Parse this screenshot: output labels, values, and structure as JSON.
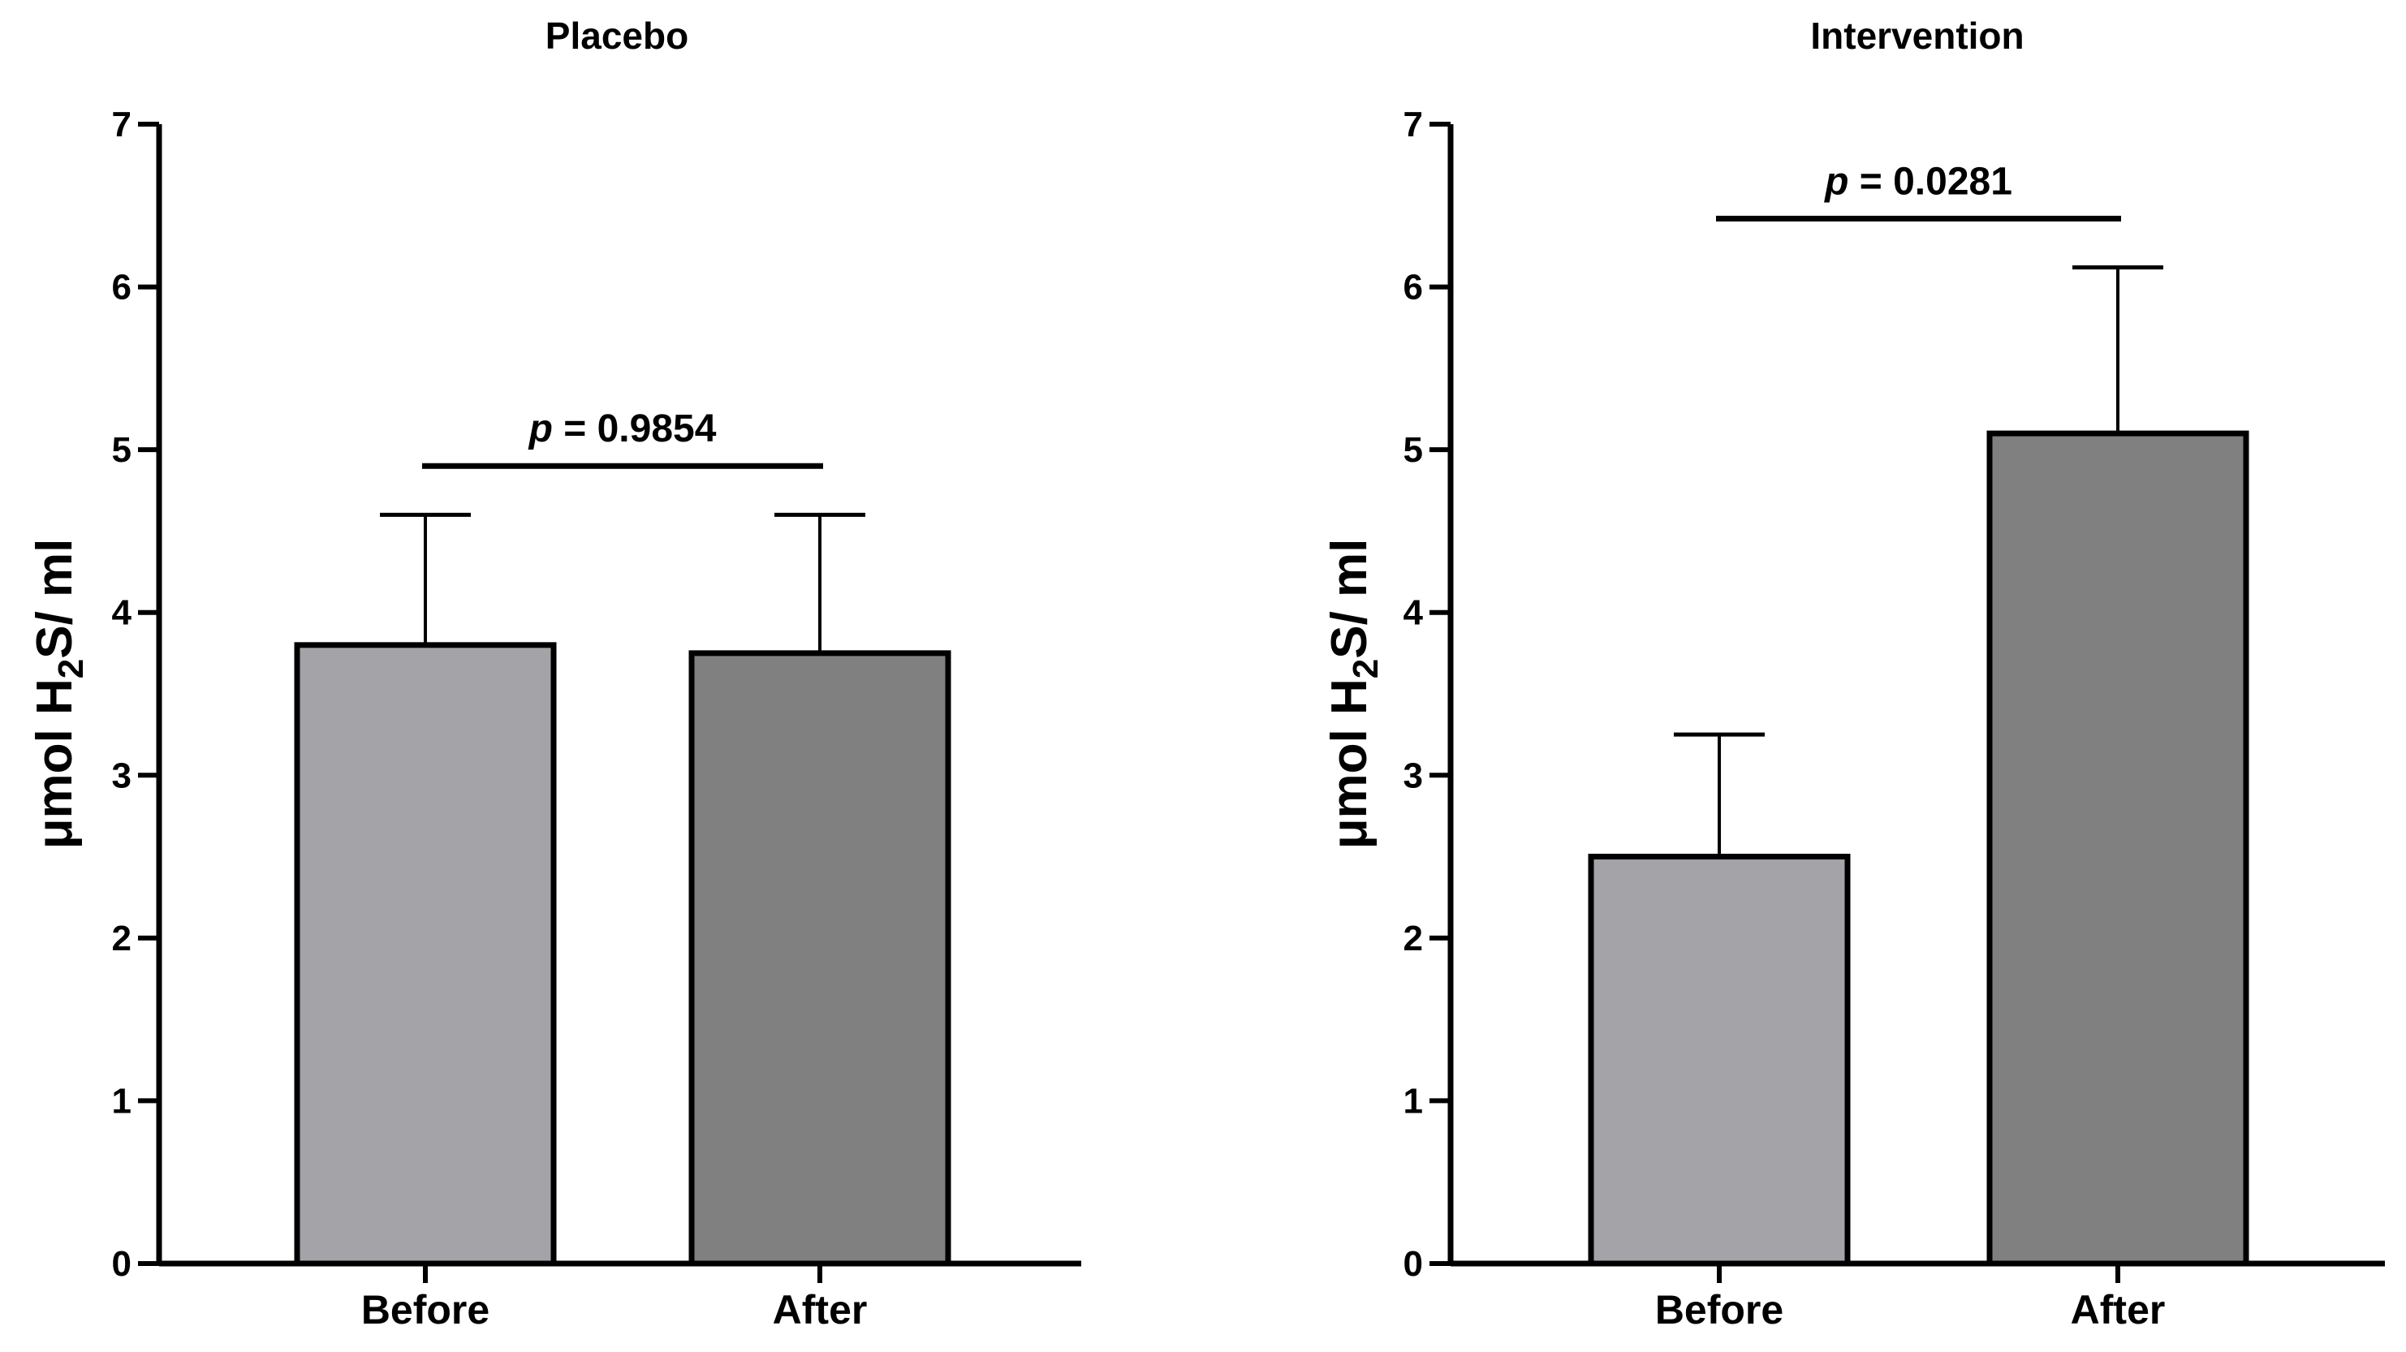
{
  "chart_data": [
    {
      "type": "bar",
      "title": "Placebo",
      "categories": [
        "Before",
        "After"
      ],
      "values": [
        3.8,
        3.75
      ],
      "error_upper": [
        4.6,
        4.6
      ],
      "ylabel": {
        "prefix": "μmol H",
        "subscript": "2",
        "suffix": "S/ ml"
      },
      "xlabel": "",
      "ylim": [
        0,
        7
      ],
      "yticks": [
        "0",
        "1",
        "2",
        "3",
        "4",
        "5",
        "6",
        "7"
      ],
      "significance": {
        "p_symbol": "p",
        "text": " = 0.9854",
        "bar_value": 4.9
      },
      "bar_colors": [
        "#a4a4a8",
        "#808080"
      ]
    },
    {
      "type": "bar",
      "title": "Intervention",
      "categories": [
        "Before",
        "After"
      ],
      "values": [
        2.5,
        5.1
      ],
      "error_upper": [
        3.25,
        6.12
      ],
      "ylabel": {
        "prefix": "μmol H",
        "subscript": "2",
        "suffix": "S/ ml"
      },
      "xlabel": "",
      "ylim": [
        0,
        7
      ],
      "yticks": [
        "0",
        "1",
        "2",
        "3",
        "4",
        "5",
        "6",
        "7"
      ],
      "significance": {
        "p_symbol": "p",
        "text": " = 0.0281",
        "bar_value": 6.42
      },
      "bar_colors": [
        "#a4a4a8",
        "#808080"
      ]
    }
  ]
}
